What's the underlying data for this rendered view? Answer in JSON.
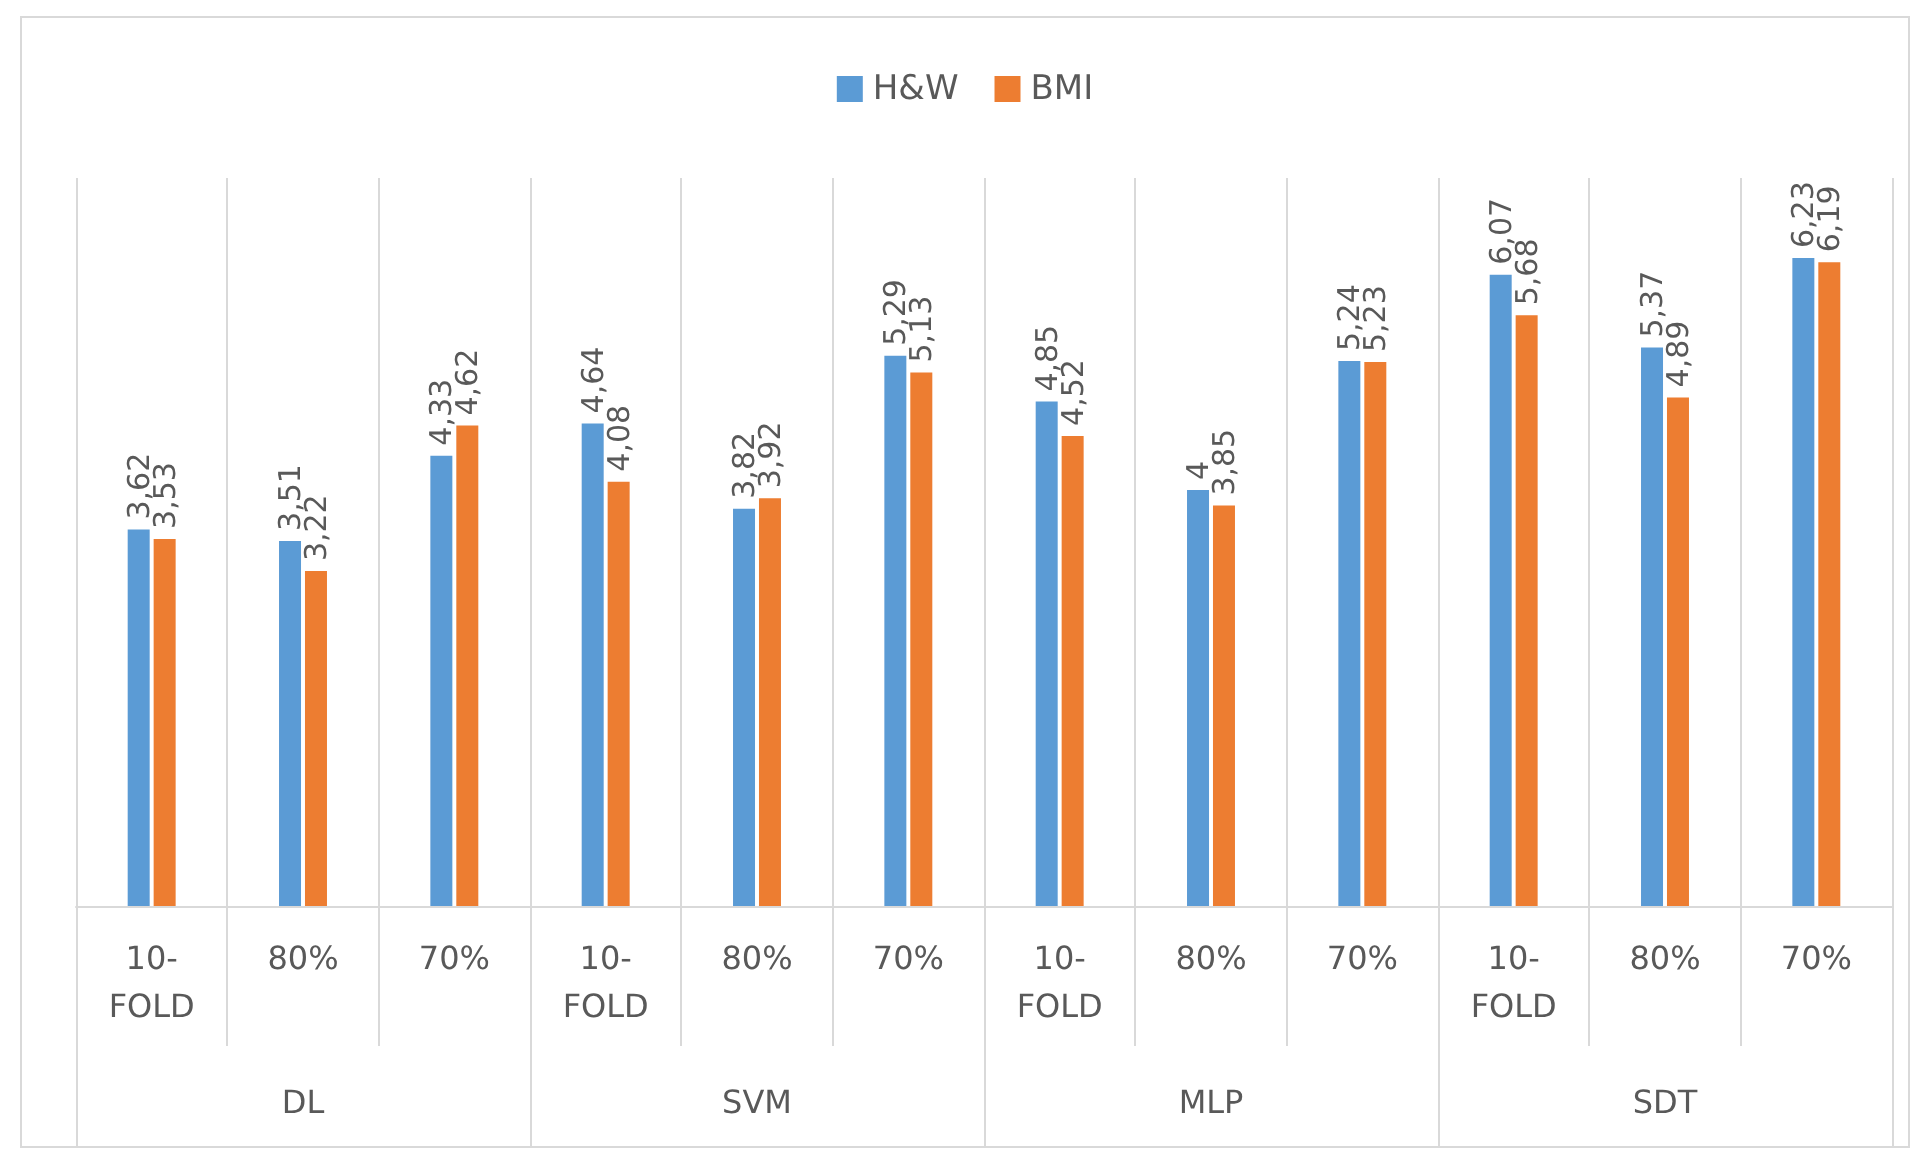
{
  "chart_data": {
    "type": "bar",
    "categories": [
      "10-FOLD",
      "80%",
      "70%",
      "10-FOLD",
      "80%",
      "70%",
      "10-FOLD",
      "80%",
      "70%",
      "10-FOLD",
      "80%",
      "70%"
    ],
    "series": [
      {
        "name": "H&W",
        "color": "#5b9bd5",
        "values": [
          3.62,
          3.51,
          4.33,
          4.64,
          3.82,
          5.29,
          4.85,
          4,
          5.24,
          6.07,
          5.37,
          6.23
        ],
        "value_labels": [
          "3,62",
          "3,51",
          "4,33",
          "4,64",
          "3,82",
          "5,29",
          "4,85",
          "4",
          "5,24",
          "6,07",
          "5,37",
          "6,23"
        ]
      },
      {
        "name": "BMI",
        "color": "#ed7d31",
        "values": [
          3.53,
          3.22,
          4.62,
          4.08,
          3.92,
          5.13,
          4.52,
          3.85,
          5.23,
          5.68,
          4.89,
          6.19
        ],
        "value_labels": [
          "3,53",
          "3,22",
          "4,62",
          "4,08",
          "3,92",
          "5,13",
          "4,52",
          "3,85",
          "5,23",
          "5,68",
          "4,89",
          "6,19"
        ]
      }
    ],
    "annotations": [
      "DL",
      "SVM",
      "MLP",
      "SDT"
    ],
    "grid": "x",
    "legend": "top",
    "tick_labels": "x"
  }
}
